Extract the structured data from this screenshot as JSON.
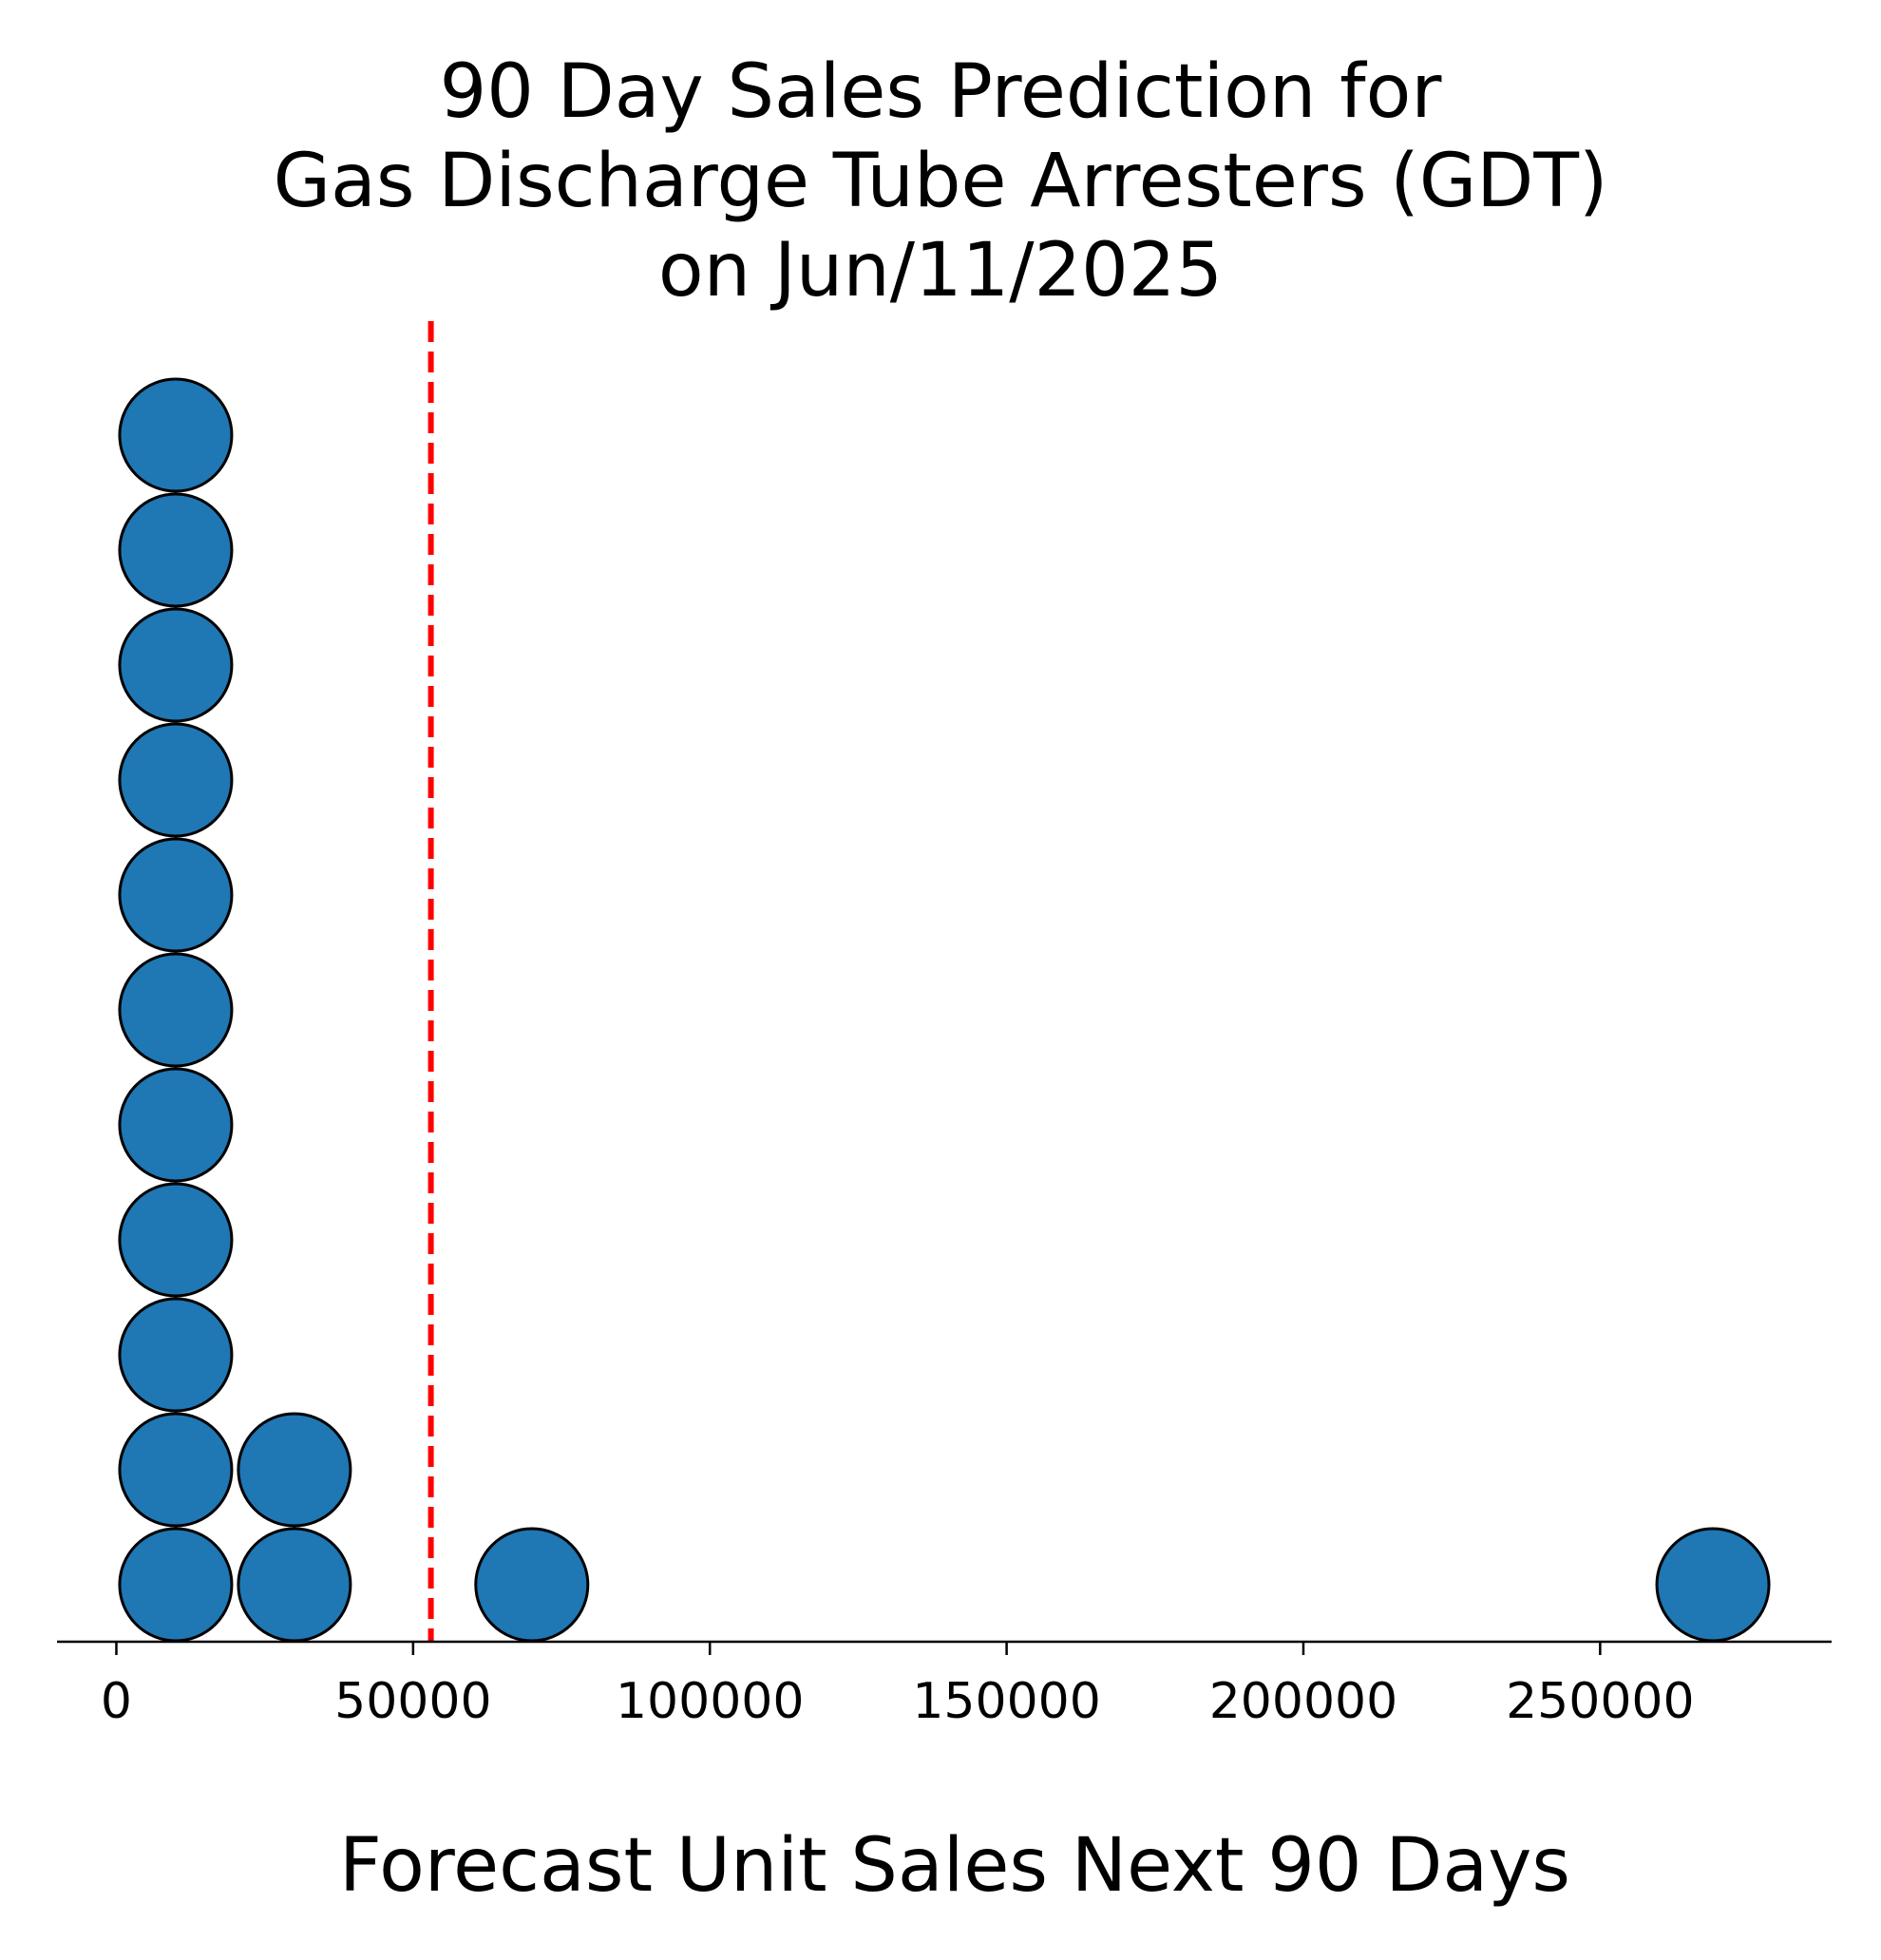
{
  "chart_data": {
    "type": "scatter",
    "subtype": "dot-plot",
    "title": [
      "90 Day Sales Prediction for",
      "Gas Discharge Tube Arresters (GDT)",
      "on Jun/11/2025"
    ],
    "xlabel": "Forecast Unit Sales Next 90 Days",
    "ylabel": "",
    "xlim": [
      -10000,
      289000
    ],
    "xticks": [
      0,
      50000,
      100000,
      150000,
      200000,
      250000
    ],
    "xtick_labels": [
      "0",
      "50000",
      "100000",
      "150000",
      "200000",
      "250000"
    ],
    "stacks": [
      {
        "x": 10000,
        "count": 11
      },
      {
        "x": 30000,
        "count": 2
      },
      {
        "x": 70000,
        "count": 1
      },
      {
        "x": 269000,
        "count": 1
      }
    ],
    "reference_line": {
      "x": 53000,
      "style": "dashed"
    },
    "grid": false,
    "legend": "none",
    "colors": {
      "dot_fill": "#1f77b4",
      "dot_edge": "#000000",
      "reference_line": "#ff0000",
      "axis": "#000000"
    }
  }
}
